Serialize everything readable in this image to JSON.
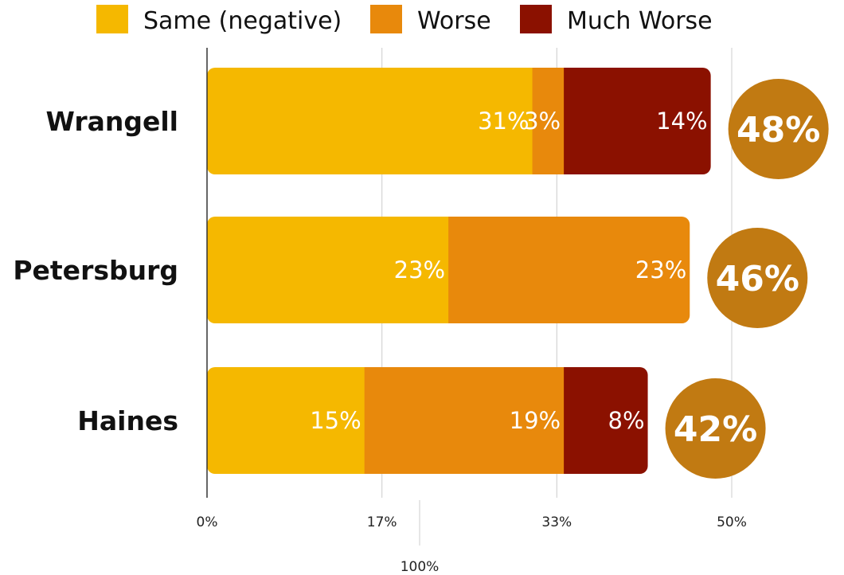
{
  "chart_data": {
    "type": "bar",
    "orientation": "horizontal",
    "stacked": true,
    "categories": [
      "Wrangell",
      "Petersburg",
      "Haines"
    ],
    "series": [
      {
        "name": "Same (negative)",
        "color": "#F5B800",
        "values": [
          31,
          23,
          15
        ],
        "labels": [
          "31%",
          "23%",
          "15%"
        ]
      },
      {
        "name": "Worse",
        "color": "#E8890C",
        "values": [
          3,
          23,
          19
        ],
        "labels": [
          "3%",
          "23%",
          "19%"
        ]
      },
      {
        "name": "Much Worse",
        "color": "#8B1100",
        "values": [
          14,
          0,
          8
        ],
        "labels": [
          "14%",
          "",
          "8%"
        ]
      }
    ],
    "totals": [
      "48%",
      "46%",
      "42%"
    ],
    "total_color": "#C17A12",
    "xticks": [
      0,
      16.67,
      33.33,
      50
    ],
    "xtick_labels": [
      "0%",
      "17%",
      "33%",
      "50%"
    ],
    "xlabel": "100%",
    "xlim": [
      0,
      50
    ],
    "grid": true,
    "legend_position": "top"
  }
}
